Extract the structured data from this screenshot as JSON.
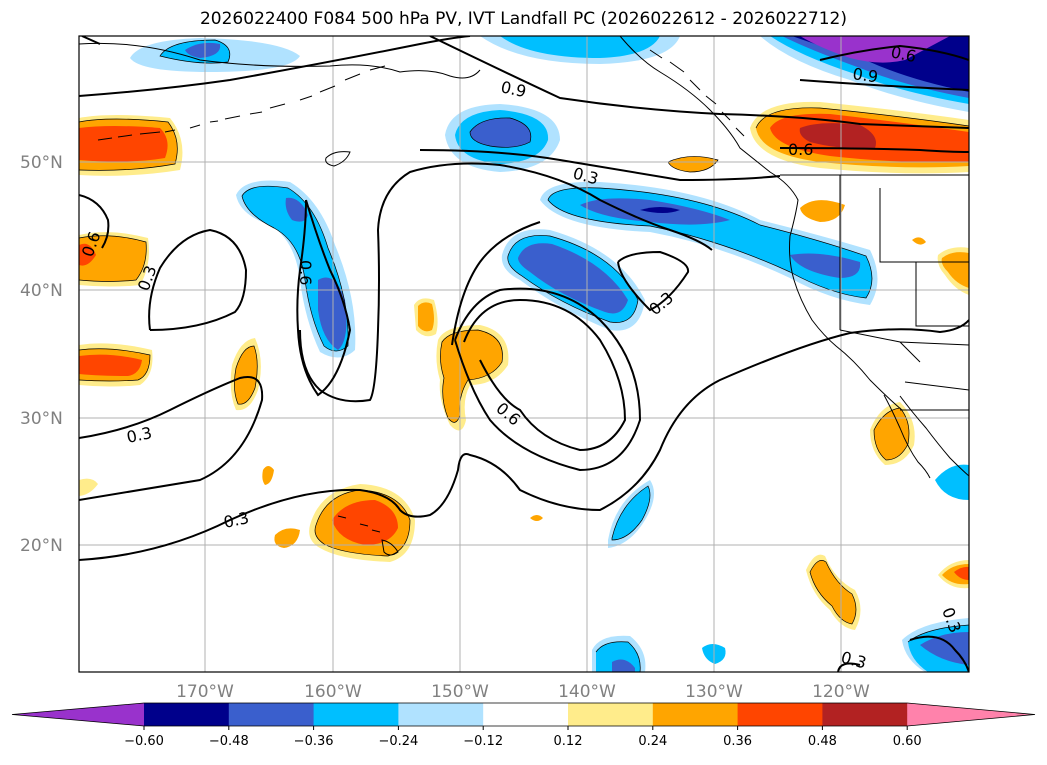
{
  "title": "2026022400 F084 500 hPa PV, IVT Landfall PC (2026022612 - 2026022712)",
  "lat_labels": [
    "50°N",
    "40°N",
    "30°N",
    "20°N"
  ],
  "lon_labels": [
    "170°W",
    "160°W",
    "150°W",
    "140°W",
    "130°W",
    "120°W"
  ],
  "colorbar": {
    "ticks": [
      "−0.60",
      "−0.48",
      "−0.36",
      "−0.24",
      "−0.12",
      "0.12",
      "0.24",
      "0.36",
      "0.48",
      "0.60"
    ],
    "colors": [
      "#9932cc",
      "#00008b",
      "#3a5fcd",
      "#00bfff",
      "#b0e2ff",
      "#ffffff",
      "#ffec8b",
      "#ffa500",
      "#ff4500",
      "#b22222",
      "#ff82ab"
    ]
  },
  "contour_labels": [
    "0.9",
    "0.6",
    "0.9",
    "0.6",
    "0.3",
    "0.3",
    "0.6",
    "0.3",
    "0.6",
    "0.3",
    "0.3",
    "0.6",
    "0.3",
    "0.3",
    "0.3"
  ],
  "chart_data": {
    "type": "heatmap",
    "field": "500 hPa PV / IVT landfall principal component",
    "lat_range": [
      10,
      60
    ],
    "lon_range": [
      -180,
      -110
    ],
    "contour_levels": [
      0.3,
      0.6,
      0.9
    ],
    "fill_levels": [
      -0.6,
      -0.48,
      -0.36,
      -0.24,
      -0.12,
      0.12,
      0.24,
      0.36,
      0.48,
      0.6
    ]
  }
}
